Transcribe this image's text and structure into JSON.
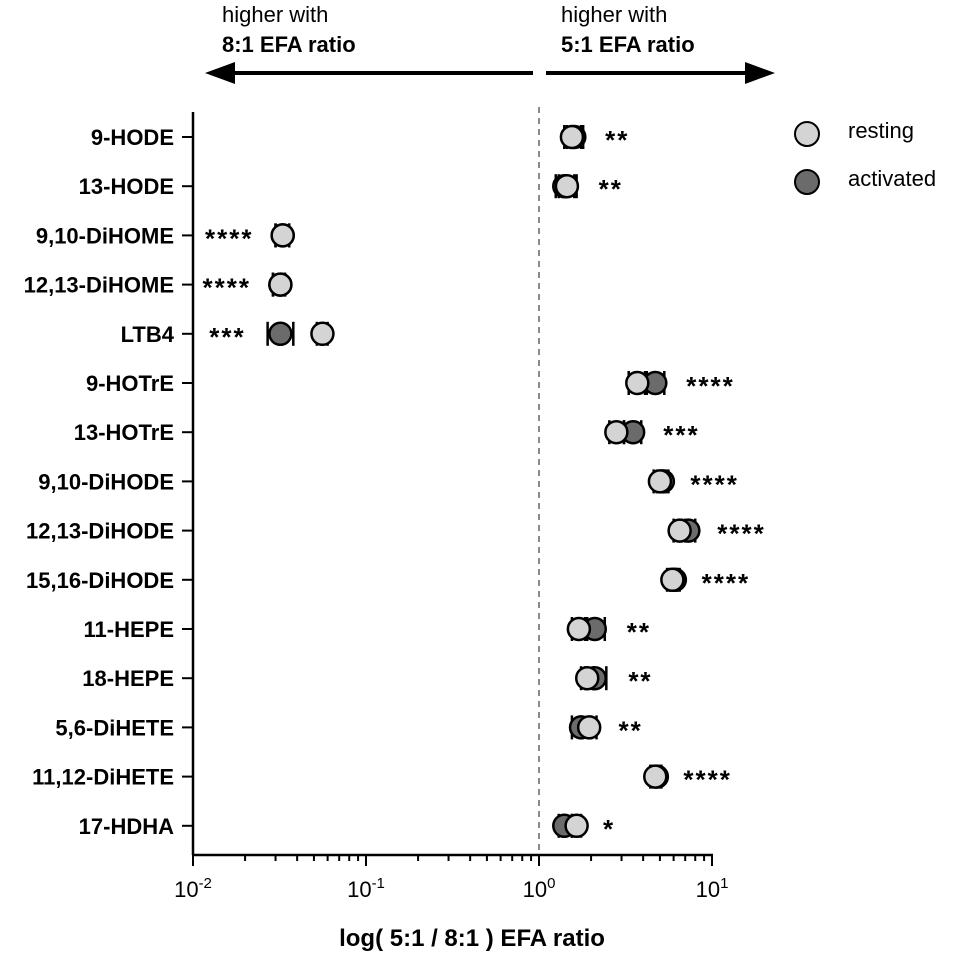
{
  "annotations": {
    "left": {
      "line1": "higher with",
      "line2": "8:1 EFA ratio"
    },
    "right": {
      "line1": "higher with",
      "line2": "5:1 EFA ratio"
    }
  },
  "colors": {
    "resting": "#d4d4d4",
    "activated": "#6b6b6b",
    "outline": "#000000",
    "reference_line": "#8a8a8a"
  },
  "chart_data": {
    "type": "scatter",
    "title": "",
    "xlabel": "log( 5:1 / 8:1 ) EFA ratio",
    "ylabel": "",
    "xscale": "log",
    "xlim": [
      0.01,
      10
    ],
    "xticks": [
      {
        "value": 0.01,
        "base": "10",
        "exp": "-2"
      },
      {
        "value": 0.1,
        "base": "10",
        "exp": "-1"
      },
      {
        "value": 1,
        "base": "10",
        "exp": "0"
      },
      {
        "value": 10,
        "base": "10",
        "exp": "1"
      }
    ],
    "reference_line": 1,
    "grid": false,
    "legend_position": "top-right",
    "legend": [
      {
        "key": "resting",
        "label": "resting"
      },
      {
        "key": "activated",
        "label": "activated"
      }
    ],
    "categories": [
      "9-HODE",
      "13-HODE",
      "9,10-DiHOME",
      "12,13-DiHOME",
      "LTB4",
      "9-HOTrE",
      "13-HOTrE",
      "9,10-DiHODE",
      "12,13-DiHODE",
      "15,16-DiHODE",
      "11-HEPE",
      "18-HEPE",
      "5,6-DiHETE",
      "11,12-DiHETE",
      "17-HDHA"
    ],
    "series": [
      {
        "name": "resting",
        "key": "resting",
        "values": [
          1.55,
          1.45,
          0.033,
          0.032,
          0.056,
          3.7,
          2.8,
          5.0,
          6.5,
          5.9,
          1.7,
          1.9,
          1.95,
          4.7,
          1.65
        ],
        "err_low": [
          1.4,
          1.3,
          0.03,
          0.029,
          0.052,
          3.3,
          2.55,
          4.6,
          6.0,
          5.5,
          1.55,
          1.75,
          1.75,
          4.4,
          1.55
        ],
        "err_high": [
          1.75,
          1.65,
          0.036,
          0.034,
          0.06,
          4.1,
          3.1,
          5.4,
          7.0,
          6.3,
          1.85,
          2.05,
          2.15,
          5.0,
          1.75
        ]
      },
      {
        "name": "activated",
        "key": "activated",
        "values": [
          1.6,
          1.4,
          0.033,
          0.032,
          0.032,
          4.7,
          3.5,
          5.2,
          7.3,
          6.1,
          2.1,
          2.1,
          1.75,
          4.8,
          1.4
        ],
        "err_low": [
          1.45,
          1.25,
          0.03,
          0.029,
          0.027,
          4.2,
          3.1,
          4.8,
          6.7,
          5.7,
          1.9,
          1.85,
          1.55,
          4.5,
          1.3
        ],
        "err_high": [
          1.8,
          1.6,
          0.036,
          0.034,
          0.038,
          5.3,
          3.9,
          5.6,
          8.0,
          6.5,
          2.4,
          2.45,
          2.0,
          5.1,
          1.55
        ]
      }
    ],
    "significance": [
      "**",
      "**",
      "****",
      "****",
      "***",
      "****",
      "***",
      "****",
      "****",
      "****",
      "**",
      "**",
      "**",
      "****",
      "*"
    ],
    "significance_side": [
      "right",
      "right",
      "left",
      "left",
      "left",
      "right",
      "right",
      "right",
      "right",
      "right",
      "right",
      "right",
      "right",
      "right",
      "right"
    ]
  }
}
